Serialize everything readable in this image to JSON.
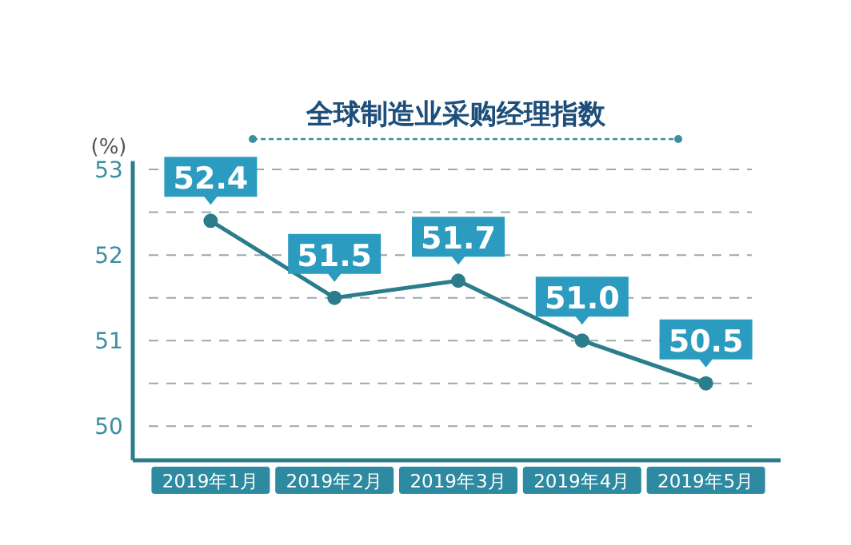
{
  "chart_data": {
    "type": "line",
    "title": "全球制造业采购经理指数",
    "ylabel": "(%)",
    "categories": [
      "2019年1月",
      "2019年2月",
      "2019年3月",
      "2019年4月",
      "2019年5月"
    ],
    "series": [
      {
        "color": "#2b7d8c",
        "values": [
          52.4,
          51.5,
          51.7,
          51.0,
          50.5
        ],
        "value_labels": [
          "52.4",
          "51.5",
          "51.7",
          "51.0",
          "50.5"
        ]
      }
    ],
    "ylim": [
      49.6,
      53.1
    ],
    "yticks": [
      50,
      {
        "value": 50.5,
        "label": null
      },
      51,
      {
        "value": 51.5,
        "label": null
      },
      52,
      {
        "value": 52.5,
        "label": null
      },
      53
    ],
    "grid": "y",
    "marker": "circle",
    "line_style": "solid"
  }
}
